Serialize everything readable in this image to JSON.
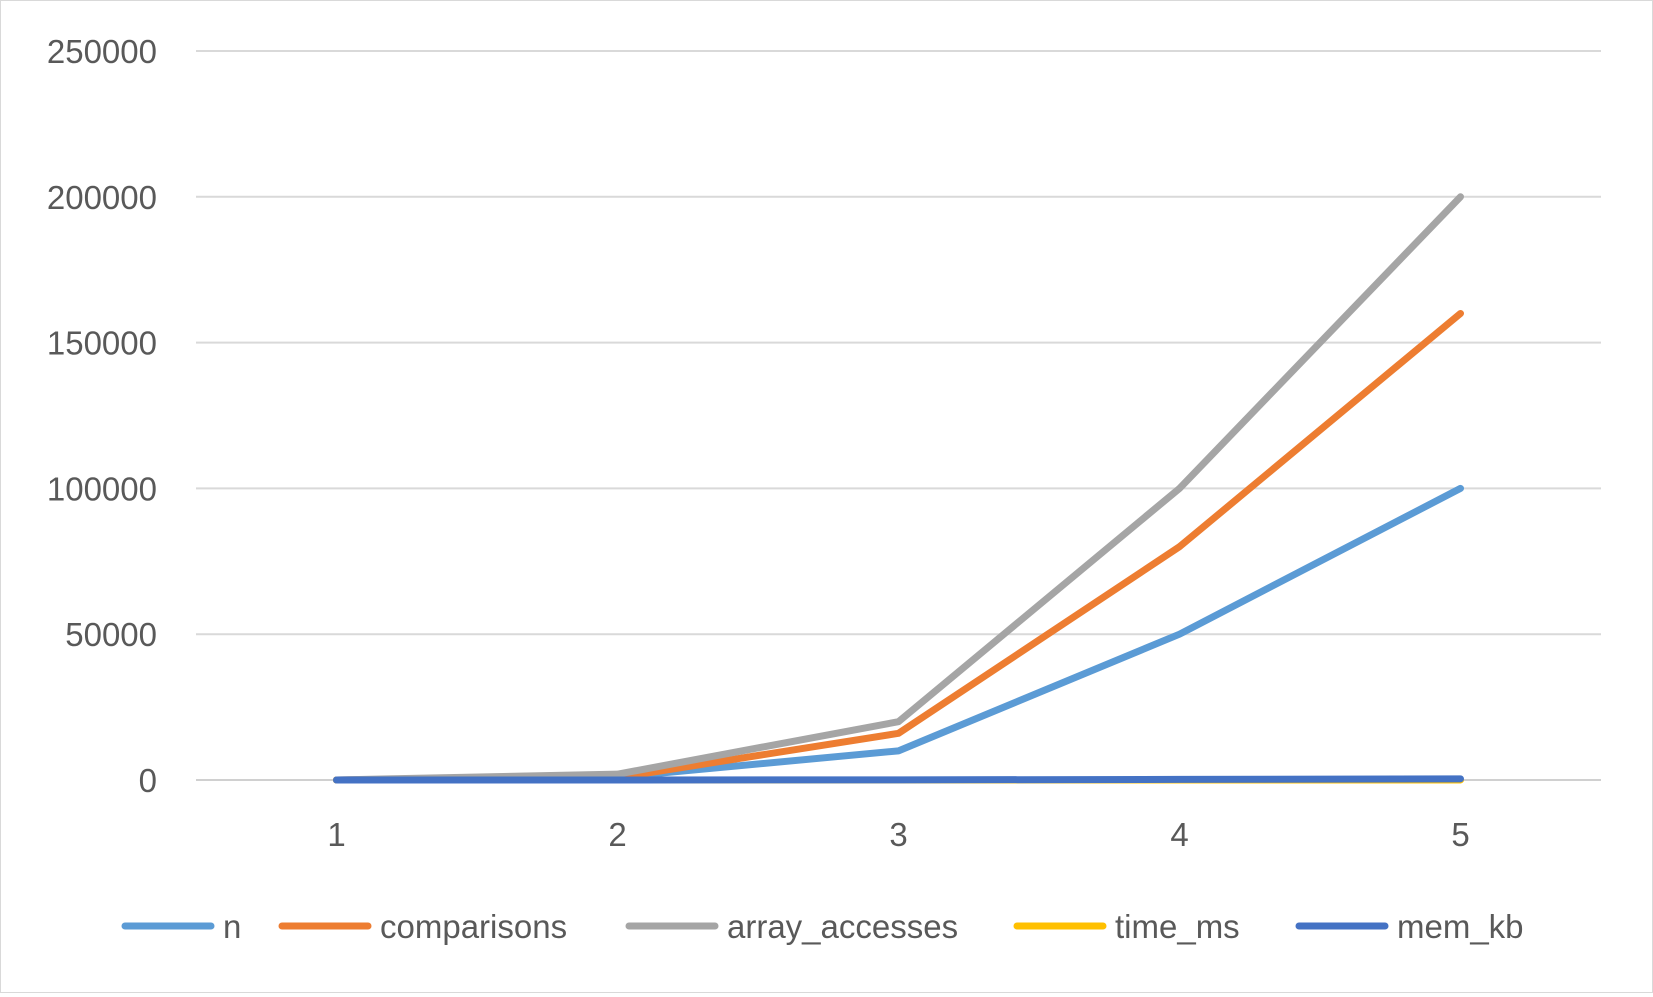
{
  "chart_data": {
    "type": "line",
    "title": "",
    "xlabel": "",
    "ylabel": "",
    "categories": [
      "1",
      "2",
      "3",
      "4",
      "5"
    ],
    "ylim": [
      0,
      250000
    ],
    "yticks": [
      "0",
      "50000",
      "100000",
      "150000",
      "200000",
      "250000"
    ],
    "grid": true,
    "legend_position": "bottom",
    "series": [
      {
        "name": "n",
        "color": "#5B9BD5",
        "values": [
          10,
          1000,
          10000,
          50000,
          100000
        ]
      },
      {
        "name": "comparisons",
        "color": "#ED7D31",
        "values": [
          10,
          800,
          16000,
          80000,
          160000
        ]
      },
      {
        "name": "array_accesses",
        "color": "#A5A5A5",
        "values": [
          20,
          2000,
          20000,
          100000,
          200000
        ]
      },
      {
        "name": "time_ms",
        "color": "#FFC000",
        "values": [
          0,
          0,
          2,
          10,
          20
        ]
      },
      {
        "name": "mem_kb",
        "color": "#4472C4",
        "values": [
          1,
          4,
          40,
          200,
          400
        ]
      }
    ]
  }
}
